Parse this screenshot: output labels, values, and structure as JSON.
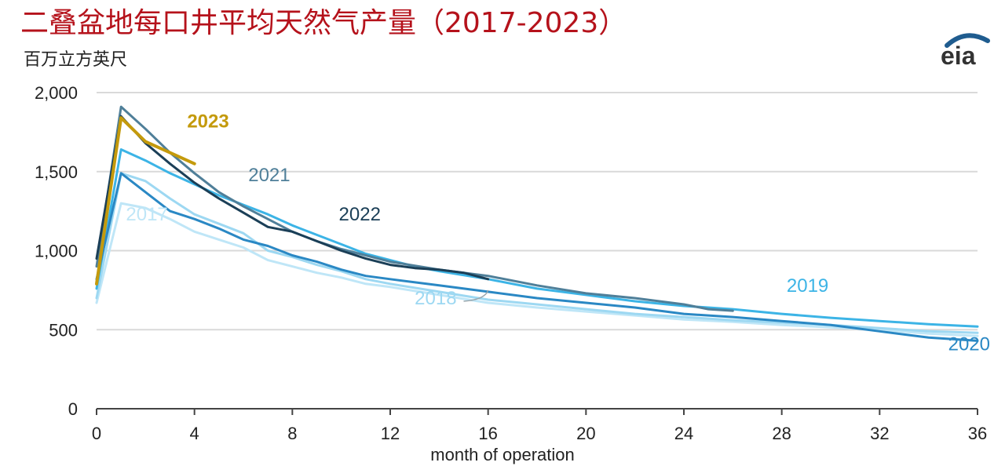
{
  "header": {
    "title": "二叠盆地每口井平均天然气产量（2017-2023）",
    "unit": "百万立方英尺",
    "logo_text": "eia"
  },
  "chart_data": {
    "type": "line",
    "title": "二叠盆地每口井平均天然气产量（2017-2023）",
    "ylabel": "百万立方英尺",
    "xlabel": "month of operation",
    "xlim": [
      0,
      36
    ],
    "ylim": [
      0,
      2000
    ],
    "x_ticks": [
      "0",
      "4",
      "8",
      "12",
      "16",
      "20",
      "24",
      "28",
      "32",
      "36"
    ],
    "y_ticks": [
      "0",
      "500",
      "1,000",
      "1,500",
      "2,000"
    ],
    "grid": true,
    "series": [
      {
        "name": "2017",
        "color": "#bfe6f7",
        "label_x": 1.2,
        "label_y": 1190,
        "points": [
          [
            0,
            670
          ],
          [
            1,
            1300
          ],
          [
            2,
            1270
          ],
          [
            3,
            1200
          ],
          [
            4,
            1120
          ],
          [
            5,
            1070
          ],
          [
            6,
            1020
          ],
          [
            7,
            940
          ],
          [
            8,
            900
          ],
          [
            9,
            860
          ],
          [
            10,
            830
          ],
          [
            11,
            790
          ],
          [
            12,
            770
          ],
          [
            14,
            720
          ],
          [
            16,
            670
          ],
          [
            18,
            640
          ],
          [
            20,
            615
          ],
          [
            22,
            590
          ],
          [
            24,
            565
          ],
          [
            26,
            550
          ],
          [
            28,
            530
          ],
          [
            30,
            515
          ],
          [
            32,
            500
          ],
          [
            34,
            475
          ],
          [
            36,
            460
          ]
        ]
      },
      {
        "name": "2018",
        "color": "#9dd8f2",
        "label_x": 13,
        "label_y": 660,
        "points": [
          [
            0,
            700
          ],
          [
            1,
            1490
          ],
          [
            2,
            1440
          ],
          [
            3,
            1330
          ],
          [
            4,
            1230
          ],
          [
            5,
            1170
          ],
          [
            6,
            1110
          ],
          [
            7,
            1000
          ],
          [
            8,
            960
          ],
          [
            9,
            910
          ],
          [
            10,
            870
          ],
          [
            11,
            820
          ],
          [
            12,
            790
          ],
          [
            14,
            740
          ],
          [
            16,
            690
          ],
          [
            18,
            660
          ],
          [
            20,
            630
          ],
          [
            22,
            600
          ],
          [
            24,
            580
          ],
          [
            26,
            560
          ],
          [
            28,
            545
          ],
          [
            30,
            530
          ],
          [
            32,
            510
          ],
          [
            34,
            490
          ],
          [
            36,
            480
          ]
        ]
      },
      {
        "name": "2019",
        "color": "#3cb4e6",
        "label_x": 28.2,
        "label_y": 740,
        "points": [
          [
            0,
            760
          ],
          [
            1,
            1640
          ],
          [
            2,
            1570
          ],
          [
            3,
            1490
          ],
          [
            4,
            1420
          ],
          [
            5,
            1350
          ],
          [
            6,
            1290
          ],
          [
            7,
            1230
          ],
          [
            8,
            1160
          ],
          [
            9,
            1100
          ],
          [
            10,
            1040
          ],
          [
            11,
            980
          ],
          [
            12,
            940
          ],
          [
            13,
            900
          ],
          [
            14,
            870
          ],
          [
            16,
            820
          ],
          [
            18,
            760
          ],
          [
            20,
            720
          ],
          [
            22,
            680
          ],
          [
            24,
            650
          ],
          [
            26,
            630
          ],
          [
            28,
            600
          ],
          [
            30,
            575
          ],
          [
            32,
            555
          ],
          [
            34,
            535
          ],
          [
            36,
            520
          ]
        ]
      },
      {
        "name": "2020",
        "color": "#2a88c4",
        "label_x": 34.8,
        "label_y": 370,
        "points": [
          [
            0,
            820
          ],
          [
            1,
            1490
          ],
          [
            2,
            1370
          ],
          [
            3,
            1250
          ],
          [
            4,
            1200
          ],
          [
            5,
            1140
          ],
          [
            6,
            1070
          ],
          [
            7,
            1030
          ],
          [
            8,
            970
          ],
          [
            9,
            930
          ],
          [
            10,
            880
          ],
          [
            11,
            840
          ],
          [
            12,
            820
          ],
          [
            14,
            780
          ],
          [
            16,
            740
          ],
          [
            18,
            700
          ],
          [
            20,
            670
          ],
          [
            22,
            640
          ],
          [
            24,
            600
          ],
          [
            26,
            580
          ],
          [
            28,
            555
          ],
          [
            30,
            530
          ],
          [
            32,
            490
          ],
          [
            34,
            450
          ],
          [
            36,
            430
          ]
        ]
      },
      {
        "name": "2021",
        "color": "#4f7f99",
        "label_x": 6.2,
        "label_y": 1440,
        "points": [
          [
            0,
            900
          ],
          [
            1,
            1910
          ],
          [
            2,
            1770
          ],
          [
            3,
            1620
          ],
          [
            4,
            1490
          ],
          [
            5,
            1370
          ],
          [
            6,
            1280
          ],
          [
            7,
            1200
          ],
          [
            8,
            1120
          ],
          [
            9,
            1060
          ],
          [
            10,
            1010
          ],
          [
            11,
            970
          ],
          [
            12,
            930
          ],
          [
            14,
            880
          ],
          [
            16,
            840
          ],
          [
            18,
            780
          ],
          [
            20,
            730
          ],
          [
            22,
            700
          ],
          [
            24,
            660
          ],
          [
            25,
            630
          ],
          [
            26,
            620
          ]
        ]
      },
      {
        "name": "2022",
        "color": "#1b3f57",
        "label_x": 9.9,
        "label_y": 1190,
        "points": [
          [
            0,
            950
          ],
          [
            1,
            1850
          ],
          [
            2,
            1680
          ],
          [
            3,
            1550
          ],
          [
            4,
            1430
          ],
          [
            5,
            1330
          ],
          [
            6,
            1240
          ],
          [
            7,
            1150
          ],
          [
            8,
            1120
          ],
          [
            9,
            1060
          ],
          [
            10,
            1000
          ],
          [
            11,
            950
          ],
          [
            12,
            910
          ],
          [
            13,
            890
          ],
          [
            14,
            880
          ],
          [
            15,
            860
          ],
          [
            16,
            820
          ]
        ]
      },
      {
        "name": "2023",
        "color": "#c49a0c",
        "label_x": 3.7,
        "label_y": 1780,
        "points": [
          [
            0,
            790
          ],
          [
            1,
            1840
          ],
          [
            2,
            1690
          ],
          [
            3,
            1620
          ],
          [
            4,
            1550
          ]
        ]
      }
    ]
  }
}
